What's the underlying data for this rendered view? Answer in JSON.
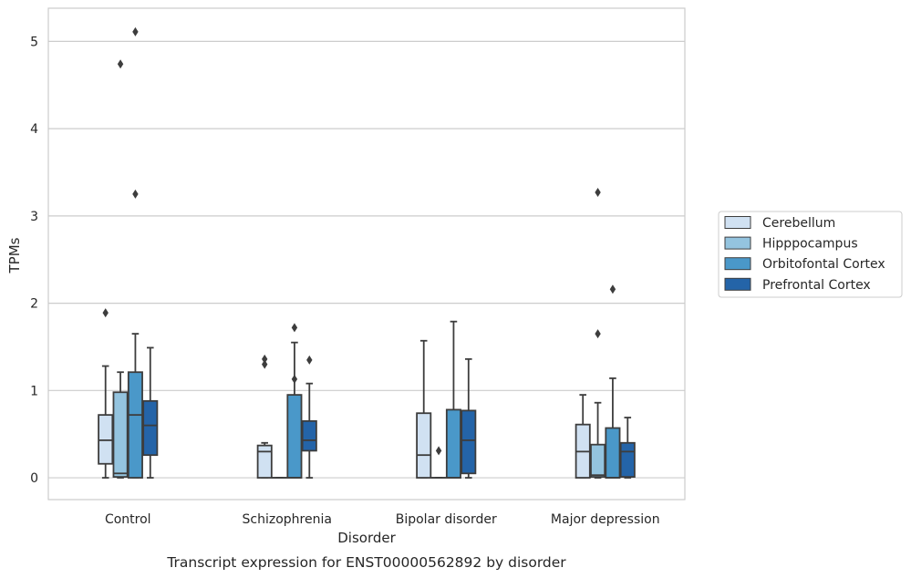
{
  "chart_data": {
    "type": "boxplot",
    "title": "",
    "caption": "Transcript expression for ENST00000562892 by disorder",
    "xlabel": "Disorder",
    "ylabel": "TPMs",
    "ylim": [
      -0.25,
      5.38
    ],
    "yticks": [
      0,
      1,
      2,
      3,
      4,
      5
    ],
    "grid": "horizontal",
    "legend_placement": "right",
    "categories": [
      "Control",
      "Schizophrenia",
      "Bipolar disorder",
      "Major depression"
    ],
    "series": [
      {
        "name": "Cerebellum",
        "color": "#d0e1f2",
        "boxes": [
          {
            "whislo": 0,
            "q1": 0.16,
            "med": 0.43,
            "q3": 0.72,
            "whishi": 1.28,
            "fliers": [
              1.89
            ]
          },
          {
            "whislo": 0,
            "q1": 0,
            "med": 0.3,
            "q3": 0.37,
            "whishi": 0.4,
            "fliers": [
              1.3,
              1.36
            ]
          },
          {
            "whislo": 0,
            "q1": 0,
            "med": 0.26,
            "q3": 0.74,
            "whishi": 1.57,
            "fliers": []
          },
          {
            "whislo": 0,
            "q1": 0,
            "med": 0.3,
            "q3": 0.61,
            "whishi": 0.95,
            "fliers": []
          }
        ]
      },
      {
        "name": "Hipppocampus",
        "color": "#94c4df",
        "boxes": [
          {
            "whislo": 0,
            "q1": 0.01,
            "med": 0.05,
            "q3": 0.98,
            "whishi": 1.21,
            "fliers": [
              4.74
            ]
          },
          {
            "whislo": 0,
            "q1": 0,
            "med": 0,
            "q3": 0,
            "whishi": 0,
            "fliers": []
          },
          {
            "whislo": 0,
            "q1": 0,
            "med": 0,
            "q3": 0,
            "whishi": 0,
            "fliers": [
              0.31
            ]
          },
          {
            "whislo": 0,
            "q1": 0.01,
            "med": 0.03,
            "q3": 0.38,
            "whishi": 0.86,
            "fliers": [
              1.65,
              3.27
            ]
          }
        ]
      },
      {
        "name": "Orbitofontal Cortex",
        "color": "#4a98c9",
        "boxes": [
          {
            "whislo": 0,
            "q1": 0,
            "med": 0.72,
            "q3": 1.21,
            "whishi": 1.65,
            "fliers": [
              3.25,
              5.11
            ]
          },
          {
            "whislo": 0,
            "q1": 0,
            "med": 0,
            "q3": 0.95,
            "whishi": 1.55,
            "fliers": [
              1.13,
              1.72
            ]
          },
          {
            "whislo": 0,
            "q1": 0,
            "med": 0,
            "q3": 0.78,
            "whishi": 1.79,
            "fliers": []
          },
          {
            "whislo": 0,
            "q1": 0,
            "med": 0,
            "q3": 0.57,
            "whishi": 1.14,
            "fliers": [
              2.16
            ]
          }
        ]
      },
      {
        "name": "Prefrontal Cortex",
        "color": "#2464a8",
        "boxes": [
          {
            "whislo": 0,
            "q1": 0.26,
            "med": 0.6,
            "q3": 0.88,
            "whishi": 1.49,
            "fliers": []
          },
          {
            "whislo": 0,
            "q1": 0.31,
            "med": 0.43,
            "q3": 0.65,
            "whishi": 1.08,
            "fliers": [
              1.35
            ]
          },
          {
            "whislo": 0,
            "q1": 0.05,
            "med": 0.43,
            "q3": 0.77,
            "whishi": 1.36,
            "fliers": []
          },
          {
            "whislo": 0,
            "q1": 0.01,
            "med": 0.3,
            "q3": 0.4,
            "whishi": 0.69,
            "fliers": []
          }
        ]
      }
    ]
  }
}
